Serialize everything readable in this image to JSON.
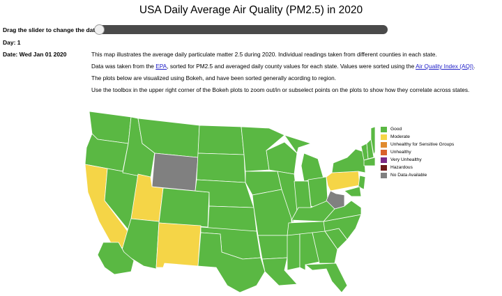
{
  "title": "USA Daily Average Air Quality (PM2.5) in 2020",
  "slider": {
    "label": "Drag the slider to change the date.",
    "value_fraction": 0.0
  },
  "day_label": "Day: 1",
  "date_label": "Date: Wed Jan 01 2020",
  "description": {
    "p1": "This map illustrates the average daily particulate matter 2.5 during 2020. Individual readings taken from different counties in each state.",
    "p2_before": "Data was taken from the ",
    "p2_link1": "EPA",
    "p2_middle": ", sorted for PM2.5 and averaged daily county values for each state. Values were sorted using the ",
    "p2_link2": "Air Quality Index (AQI)",
    "p2_after": ".",
    "p3": "The plots below are visualized using Bokeh, and have been sorted generally acording to region.",
    "p4": "Use the toolbox in the upper right corner of the Bokeh plots to zoom out/in or subselect points on the plots to show how they correlate across states."
  },
  "legend": [
    {
      "label": "Good",
      "color": "#5ab843"
    },
    {
      "label": "Moderate",
      "color": "#f5d547"
    },
    {
      "label": "Unhealthy for Sensitive Groups",
      "color": "#e08a2e"
    },
    {
      "label": "Unhealthy",
      "color": "#d9622b"
    },
    {
      "label": "Very Unhealthy",
      "color": "#7b2a86"
    },
    {
      "label": "Hazardous",
      "color": "#6e1b1b"
    },
    {
      "label": "No Data Available",
      "color": "#808080"
    }
  ],
  "map": {
    "good_states": [
      "Washington",
      "Oregon",
      "Idaho",
      "Montana",
      "Nevada",
      "Arizona",
      "Colorado",
      "North Dakota",
      "South Dakota",
      "Nebraska",
      "Kansas",
      "Oklahoma",
      "Texas",
      "Minnesota",
      "Iowa",
      "Missouri",
      "Arkansas",
      "Louisiana",
      "Wisconsin",
      "Illinois",
      "Michigan",
      "Indiana",
      "Ohio",
      "Kentucky",
      "Tennessee",
      "Mississippi",
      "Alabama",
      "Georgia",
      "Florida",
      "South Carolina",
      "North Carolina",
      "Virginia",
      "New York",
      "Vermont",
      "New Hampshire",
      "Maine",
      "Massachusetts",
      "New Jersey",
      "Maryland",
      "Alaska"
    ],
    "moderate_states": [
      "California",
      "Utah",
      "New Mexico",
      "Pennsylvania"
    ],
    "no_data_states": [
      "Wyoming",
      "West Virginia"
    ]
  }
}
